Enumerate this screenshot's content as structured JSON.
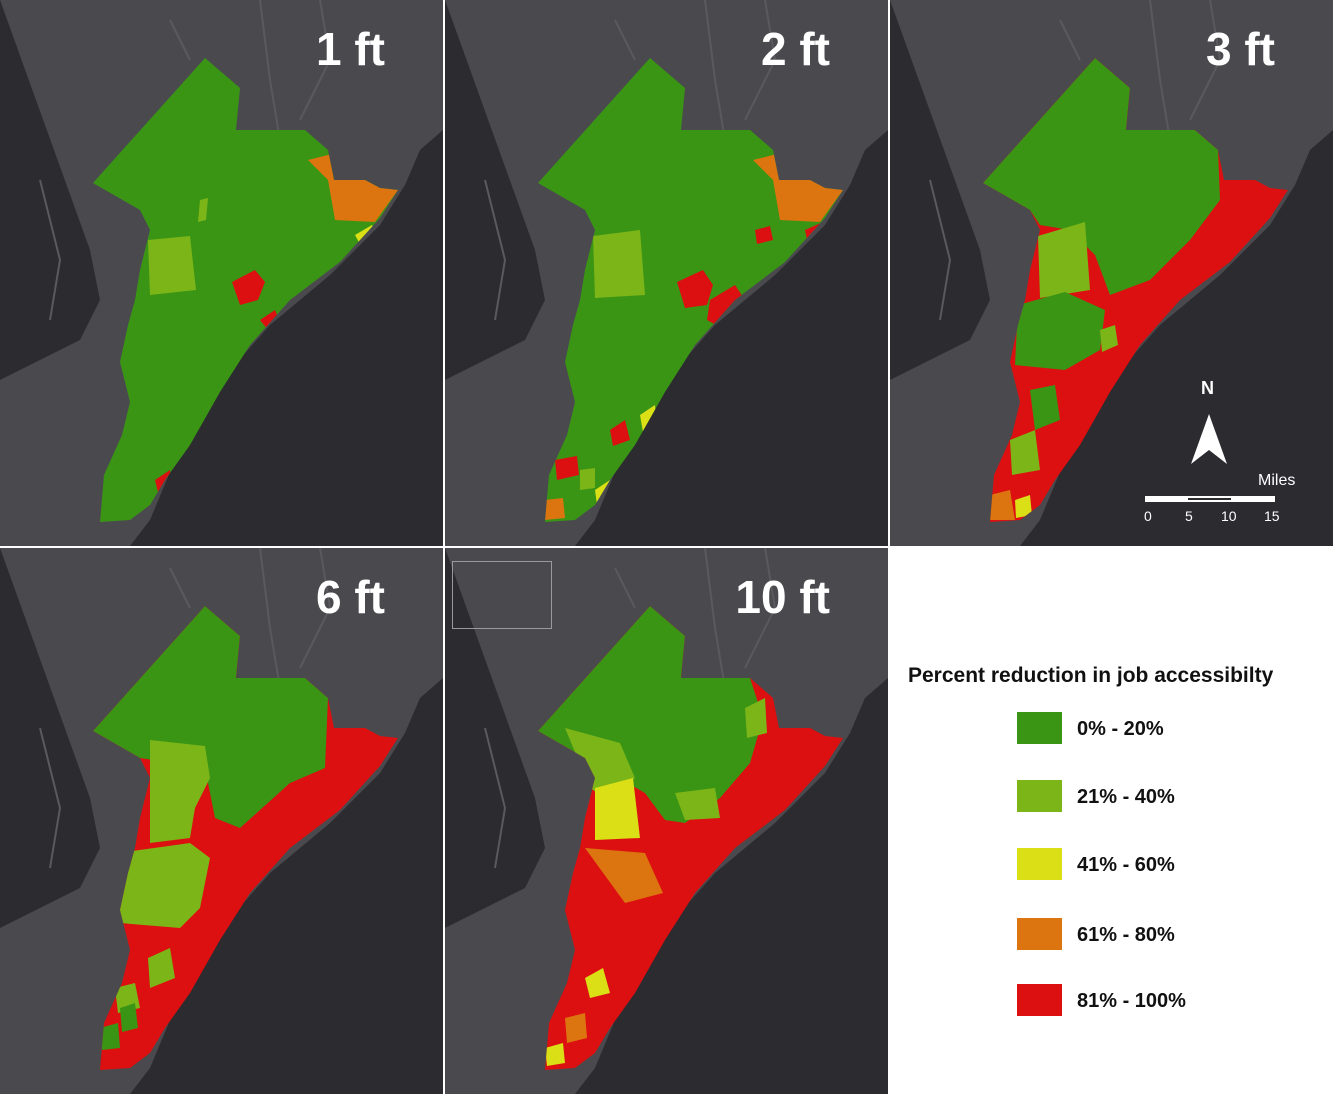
{
  "panels": [
    {
      "label": "1 ft"
    },
    {
      "label": "2 ft"
    },
    {
      "label": "3 ft"
    },
    {
      "label": "6 ft"
    },
    {
      "label": "10 ft"
    }
  ],
  "legend": {
    "title": "Percent reduction in job accessibilty",
    "items": [
      {
        "label": "0% - 20%",
        "color": "#3a9515"
      },
      {
        "label": "21% - 40%",
        "color": "#7cb518"
      },
      {
        "label": "41% - 60%",
        "color": "#dadf16"
      },
      {
        "label": "61% - 80%",
        "color": "#dc7510"
      },
      {
        "label": "81% - 100%",
        "color": "#dc1010"
      }
    ]
  },
  "north_arrow": {
    "label": "N"
  },
  "scale_bar": {
    "title": "Miles",
    "ticks": [
      "0",
      "5",
      "10",
      "15"
    ]
  },
  "colors": {
    "ocean": "#2b2b30",
    "land": "#4a4a4e"
  }
}
